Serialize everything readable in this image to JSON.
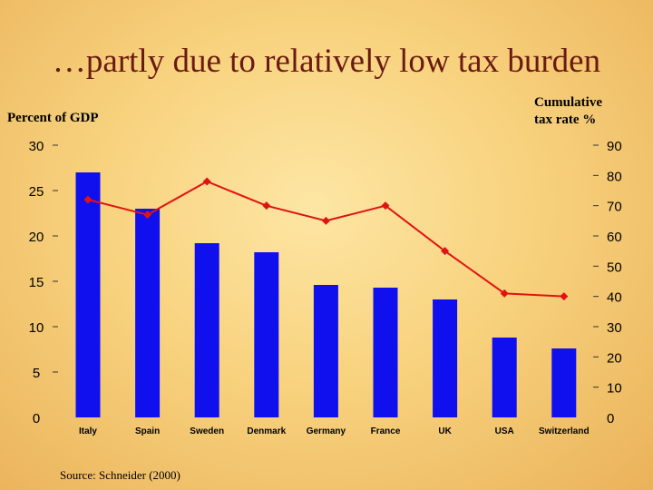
{
  "slide": {
    "title": "…partly due to relatively low tax burden",
    "left_axis_label": "Percent of GDP",
    "right_axis_label_line1": "Cumulative",
    "right_axis_label_line2": "tax rate %",
    "source": "Source: Schneider (2000)"
  },
  "chart_data": {
    "type": "bar",
    "categories": [
      "Italy",
      "Spain",
      "Sweden",
      "Denmark",
      "Germany",
      "France",
      "UK",
      "USA",
      "Switzerland"
    ],
    "series": [
      {
        "type": "bar",
        "axis": "left",
        "color": "#1010ee",
        "values": [
          27.0,
          23.0,
          19.2,
          18.2,
          14.6,
          14.3,
          13.0,
          8.8,
          7.6
        ]
      },
      {
        "type": "line",
        "axis": "right",
        "color": "#e11212",
        "marker": "diamond",
        "values": [
          72,
          67,
          78,
          70,
          65,
          70,
          55,
          41,
          40
        ]
      }
    ],
    "y_left": {
      "min": 0,
      "max": 30,
      "ticks": [
        0,
        5,
        10,
        15,
        20,
        25,
        30
      ]
    },
    "y_right": {
      "min": 0,
      "max": 90,
      "ticks": [
        0,
        10,
        20,
        30,
        40,
        50,
        60,
        70,
        80,
        90
      ]
    },
    "grid": false,
    "legend": "none"
  }
}
